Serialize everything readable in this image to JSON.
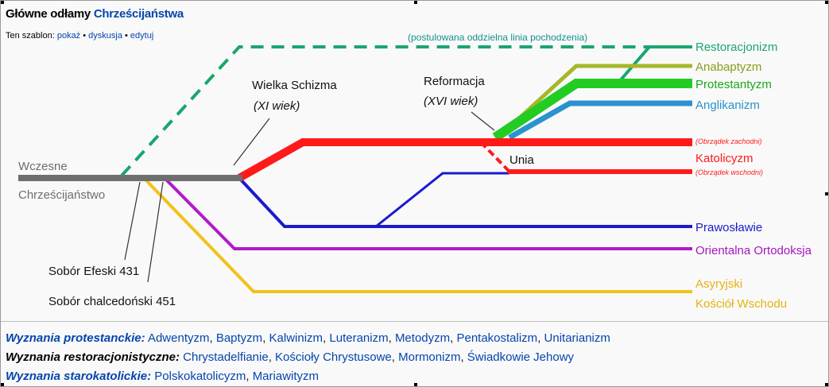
{
  "header": {
    "title_plain": "Główne odłamy ",
    "title_link": "Chrześcijaństwa",
    "template_prefix": "Ten szablon: ",
    "template_links": [
      "pokaż",
      "dyskusja",
      "edytuj"
    ],
    "bullet": " • "
  },
  "diagram": {
    "postulated_note": "(postulowana oddzielna linia pochodzenia)",
    "early_1": "Wczesne",
    "early_2": "Chrześcijaństwo",
    "schism": "Wielka Schizma",
    "schism_date": "(XI wiek)",
    "reformation": "Reformacja",
    "reformation_date": "(XVI wiek)",
    "union": "Unia",
    "ephesus": "Sobór Efeski 431",
    "chalcedon": "Sobór chalcedoński 451",
    "branches": {
      "restoration": "Restoracjonizm",
      "anabaptism": "Anabaptyzm",
      "protestantism": "Protestantyzm",
      "anglicanism": "Anglikanizm",
      "western_rite": "(Obrządek zachodni)",
      "catholicism": "Katolicyzm",
      "eastern_rite": "(Obrządek wschodni)",
      "orthodoxy": "Prawosławie",
      "oriental": "Orientalna Ortodoksja",
      "assyrian_1": "Asyryjski",
      "assyrian_2": "Kościół Wschodu"
    },
    "colors": {
      "early": "#6e6e6e",
      "restoration": "#1aa66e",
      "anabaptism": "#a6b82a",
      "protestantism": "#22cc22",
      "anglicanism": "#2a93cf",
      "catholicism": "#ff1a1a",
      "orthodoxy": "#1a1acc",
      "oriental": "#b21acc",
      "assyrian": "#f2c21a"
    }
  },
  "footer": {
    "protestant_head": "Wyznania protestanckie:",
    "protestant": [
      "Adwentyzm",
      "Baptyzm",
      "Kalwinizm",
      "Luteranizm",
      "Metodyzm",
      "Pentakostalizm",
      "Unitarianizm"
    ],
    "restoration_head": "Wyznania restoracjonistyczne:",
    "restoration": [
      "Chrystadelfianie",
      "Kościoły Chrystusowe",
      "Mormonizm",
      "Świadkowie Jehowy"
    ],
    "oldcatholic_head": "Wyznania starokatolickie:",
    "oldcatholic": [
      "Polskokatolicyzm",
      "Mariawityzm"
    ]
  }
}
